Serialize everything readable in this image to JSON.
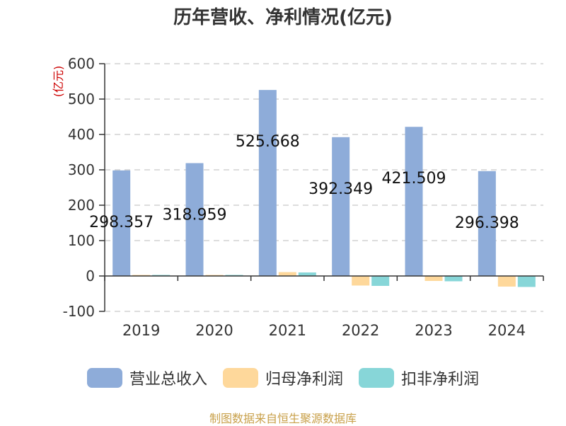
{
  "chart_data": {
    "type": "bar",
    "title": "历年营收、净利情况(亿元)",
    "ylabel": "(亿元)",
    "ylim": [
      -100,
      600
    ],
    "yticks": [
      -100,
      0,
      100,
      200,
      300,
      400,
      500,
      600
    ],
    "grid": true,
    "legend_position": "bottom",
    "categories": [
      "2019",
      "2020",
      "2021",
      "2022",
      "2023",
      "2024"
    ],
    "series": [
      {
        "name": "营业总收入",
        "color": "#8eacd9",
        "values": [
          298.357,
          318.959,
          525.668,
          392.349,
          421.509,
          296.398
        ],
        "data_labels": [
          "298.357",
          "318.959",
          "525.668",
          "392.349",
          "421.509",
          "296.398"
        ]
      },
      {
        "name": "归母净利润",
        "color": "#fed89b",
        "values": [
          3,
          3,
          11,
          -27,
          -14,
          -30
        ]
      },
      {
        "name": "扣非净利润",
        "color": "#87d6d8",
        "values": [
          3,
          3,
          10,
          -28,
          -15,
          -31
        ]
      }
    ]
  },
  "source": "制图数据来自恒生聚源数据库"
}
